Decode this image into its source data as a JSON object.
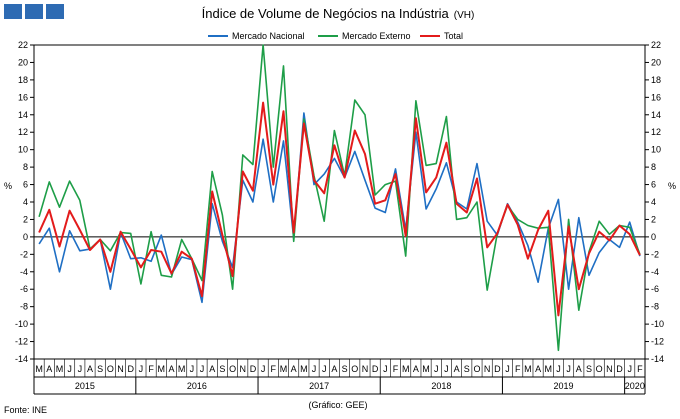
{
  "chart_data": {
    "type": "line",
    "title": "Índice de Volume de Negócios na Indústria",
    "title_suffix": "(VH)",
    "ylabel_left": "%",
    "ylabel_right": "%",
    "ylim": [
      -14,
      22
    ],
    "yticks": [
      22,
      20,
      18,
      16,
      14,
      12,
      10,
      8,
      6,
      4,
      2,
      0,
      -2,
      -4,
      -6,
      -8,
      -10,
      -12,
      -14
    ],
    "grid": false,
    "legend_position": "top",
    "x": [
      "M",
      "A",
      "M",
      "J",
      "J",
      "A",
      "S",
      "O",
      "N",
      "D",
      "J",
      "F",
      "M",
      "A",
      "M",
      "J",
      "J",
      "A",
      "S",
      "O",
      "N",
      "D",
      "J",
      "F",
      "M",
      "A",
      "M",
      "J",
      "J",
      "A",
      "S",
      "O",
      "N",
      "D",
      "J",
      "F",
      "M",
      "A",
      "M",
      "J",
      "J",
      "A",
      "S",
      "O",
      "N",
      "D",
      "J",
      "F",
      "M",
      "A",
      "M",
      "J",
      "J",
      "A",
      "S",
      "O",
      "N",
      "D",
      "J",
      "F"
    ],
    "years": [
      {
        "label": "2015",
        "start": 0,
        "end": 9
      },
      {
        "label": "2016",
        "start": 10,
        "end": 21
      },
      {
        "label": "2017",
        "start": 22,
        "end": 33
      },
      {
        "label": "2018",
        "start": 34,
        "end": 45
      },
      {
        "label": "2019",
        "start": 46,
        "end": 57
      },
      {
        "label": "2020",
        "start": 58,
        "end": 59
      }
    ],
    "series": [
      {
        "name": "Mercado Nacional",
        "color": "#1f6fc4",
        "values": [
          -0.8,
          1.0,
          -4.0,
          0.7,
          -1.6,
          -1.4,
          -0.3,
          -6.0,
          0.5,
          -2.5,
          -2.4,
          -2.8,
          0.2,
          -4.3,
          -2.3,
          -2.6,
          -7.5,
          3.8,
          -0.5,
          -3.5,
          6.5,
          4.0,
          11.2,
          4.0,
          11.0,
          -0.2,
          14.2,
          6.0,
          7.2,
          9.0,
          6.8,
          9.8,
          6.5,
          3.3,
          2.8,
          7.8,
          0.8,
          12.0,
          3.2,
          5.5,
          8.5,
          4.0,
          3.2,
          8.4,
          1.8,
          0.2,
          3.8,
          1.7,
          -1.0,
          -5.2,
          1.0,
          4.3,
          -6.0,
          2.2,
          -4.4,
          -1.8,
          -0.3,
          -1.2,
          1.7,
          -2.2
        ]
      },
      {
        "name": "Mercado Externo",
        "color": "#1e9e48",
        "values": [
          2.3,
          6.3,
          3.4,
          6.4,
          4.2,
          -1.4,
          -0.3,
          -1.6,
          0.5,
          0.4,
          -5.4,
          0.6,
          -4.4,
          -4.6,
          -0.3,
          -2.5,
          -5.0,
          7.5,
          2.5,
          -6.0,
          9.4,
          8.3,
          22.0,
          8.0,
          19.6,
          -0.5,
          13.5,
          7.0,
          1.8,
          12.2,
          7.0,
          15.7,
          14.0,
          4.8,
          6.0,
          6.4,
          -2.2,
          15.6,
          8.2,
          8.4,
          13.8,
          2.0,
          2.2,
          4.0,
          -6.1,
          0.4,
          3.6,
          2.0,
          1.3,
          1.0,
          1.1,
          -13.0,
          2.0,
          -8.4,
          -1.7,
          1.8,
          0.3,
          1.3,
          1.1,
          -2.0
        ]
      },
      {
        "name": "Total",
        "color": "#e31b1b",
        "values": [
          0.5,
          3.1,
          -1.1,
          3.0,
          0.8,
          -1.5,
          -0.3,
          -4.0,
          0.6,
          -1.4,
          -3.5,
          -1.5,
          -1.7,
          -4.2,
          -1.7,
          -2.5,
          -6.8,
          5.2,
          0.2,
          -4.5,
          7.5,
          5.3,
          15.4,
          6.0,
          14.4,
          0.5,
          13.0,
          6.5,
          5.0,
          10.5,
          6.8,
          12.2,
          9.5,
          3.8,
          4.2,
          7.2,
          0.1,
          13.6,
          5.1,
          6.8,
          10.8,
          3.8,
          2.8,
          6.7,
          -1.2,
          0.4,
          3.7,
          1.4,
          -2.5,
          0.8,
          3.0,
          -9.0,
          1.2,
          -6.0,
          -1.9,
          0.6,
          -0.4,
          1.3,
          0.3,
          -2.1
        ]
      }
    ],
    "source": "Fonte: INE",
    "credit": "(Gráfico: GEE)"
  }
}
